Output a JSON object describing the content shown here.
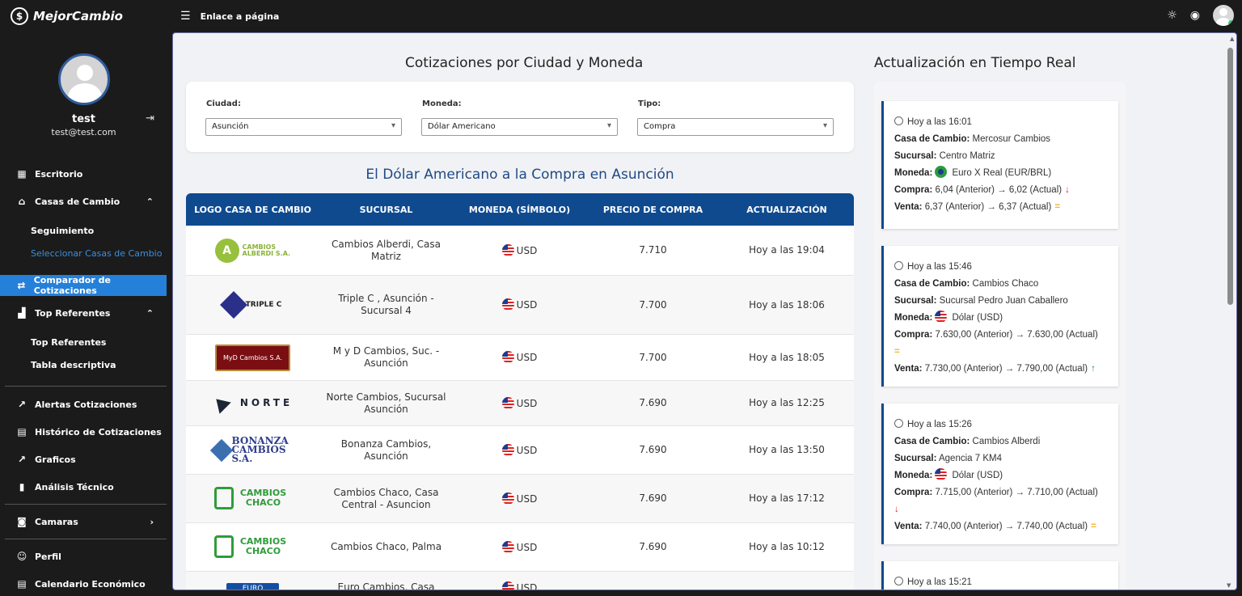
{
  "brand": {
    "name": "MejorCambio"
  },
  "topbar": {
    "link": "Enlace a página",
    "icons": [
      "menu-collapse-icon",
      "sun-icon",
      "eye-icon",
      "avatar"
    ]
  },
  "user": {
    "name": "test",
    "email": "test@test.com"
  },
  "sidebar": {
    "escritorio": "Escritorio",
    "casas": "Casas de Cambio",
    "seguimiento": "Seguimiento",
    "seleccionar": "Seleccionar Casas de Cambio",
    "comparador": "Comparador de Cotizaciones",
    "top": "Top Referentes",
    "top_sub": "Top Referentes",
    "tabla": "Tabla descriptiva",
    "alertas": "Alertas Cotizaciones",
    "historico": "Histórico de Cotizaciones",
    "graficos": "Graficos",
    "analisis": "Análisis Técnico",
    "camaras": "Camaras",
    "perfil": "Perfil",
    "calendario": "Calendario Económico"
  },
  "main": {
    "title": "Cotizaciones por Ciudad y Moneda",
    "filters": {
      "ciudad_label": "Ciudad:",
      "ciudad_value": "Asunción",
      "moneda_label": "Moneda:",
      "moneda_value": "Dólar Americano",
      "tipo_label": "Tipo:",
      "tipo_value": "Compra"
    },
    "table_title": "El Dólar Americano a la Compra en Asunción",
    "columns": [
      "LOGO CASA DE CAMBIO",
      "SUCURSAL",
      "MONEDA (SÍMBOLO)",
      "PRECIO DE COMPRA",
      "ACTUALIZACIÓN"
    ],
    "rows": [
      {
        "logo": "CAMBIOS ALBERDI S.A.",
        "sucursal": "Cambios Alberdi, Casa Matriz",
        "moneda": "USD",
        "precio": "7.710",
        "act": "Hoy a las 19:04"
      },
      {
        "logo": "TRIPLE C",
        "sucursal": "Triple C , Asunción - Sucursal 4",
        "moneda": "USD",
        "precio": "7.700",
        "act": "Hoy a las 18:06"
      },
      {
        "logo": "MyD Cambios S.A.",
        "sucursal": "M y D Cambios, Suc. - Asunción",
        "moneda": "USD",
        "precio": "7.700",
        "act": "Hoy a las 18:05"
      },
      {
        "logo": "NORTE",
        "sucursal": "Norte Cambios, Sucursal Asunción",
        "moneda": "USD",
        "precio": "7.690",
        "act": "Hoy a las 12:25"
      },
      {
        "logo": "BONANZA CAMBIOS S.A.",
        "sucursal": "Bonanza Cambios, Asunción",
        "moneda": "USD",
        "precio": "7.690",
        "act": "Hoy a las 13:50"
      },
      {
        "logo": "CAMBIOS CHACO",
        "sucursal": "Cambios Chaco, Casa Central - Asuncion",
        "moneda": "USD",
        "precio": "7.690",
        "act": "Hoy a las 17:12"
      },
      {
        "logo": "CAMBIOS CHACO",
        "sucursal": "Cambios Chaco, Palma",
        "moneda": "USD",
        "precio": "7.690",
        "act": "Hoy a las 10:12"
      },
      {
        "logo": "EURO",
        "sucursal": "Euro Cambios, Casa",
        "moneda": "USD",
        "precio": "",
        "act": ""
      }
    ]
  },
  "realtime": {
    "title": "Actualización en Tiempo Real",
    "labels": {
      "casa": "Casa de Cambio:",
      "sucursal": "Sucursal:",
      "moneda": "Moneda:",
      "compra": "Compra:",
      "venta": "Venta:"
    },
    "cards": [
      {
        "time": "Hoy a las 16:01",
        "casa": "Mercosur Cambios",
        "sucursal": "Centro Matriz",
        "moneda": "Euro X Real (EUR/BRL)",
        "compra": "6,04 (Anterior) → 6,02 (Actual)",
        "compra_trend": "down",
        "venta": "6,37 (Anterior) → 6,37 (Actual)",
        "venta_trend": "equal"
      },
      {
        "time": "Hoy a las 15:46",
        "casa": "Cambios Chaco",
        "sucursal": "Sucursal Pedro Juan Caballero",
        "moneda": "Dólar (USD)",
        "compra": "7.630,00 (Anterior) → 7.630,00 (Actual)",
        "compra_trend": "equal",
        "venta": "7.730,00 (Anterior) → 7.790,00 (Actual)",
        "venta_trend": "up"
      },
      {
        "time": "Hoy a las 15:26",
        "casa": "Cambios Alberdi",
        "sucursal": "Agencia 7 KM4",
        "moneda": "Dólar (USD)",
        "compra": "7.715,00 (Anterior) → 7.710,00 (Actual)",
        "compra_trend": "down",
        "venta": "7.740,00 (Anterior) → 7.740,00 (Actual)",
        "venta_trend": "equal"
      },
      {
        "time": "Hoy a las 15:21"
      }
    ]
  },
  "colors": {
    "accent": "#2580d9",
    "table_header": "#0f4a8f",
    "down": "#e02424",
    "up": "#1d9a3a",
    "equal": "#f0b52c"
  }
}
